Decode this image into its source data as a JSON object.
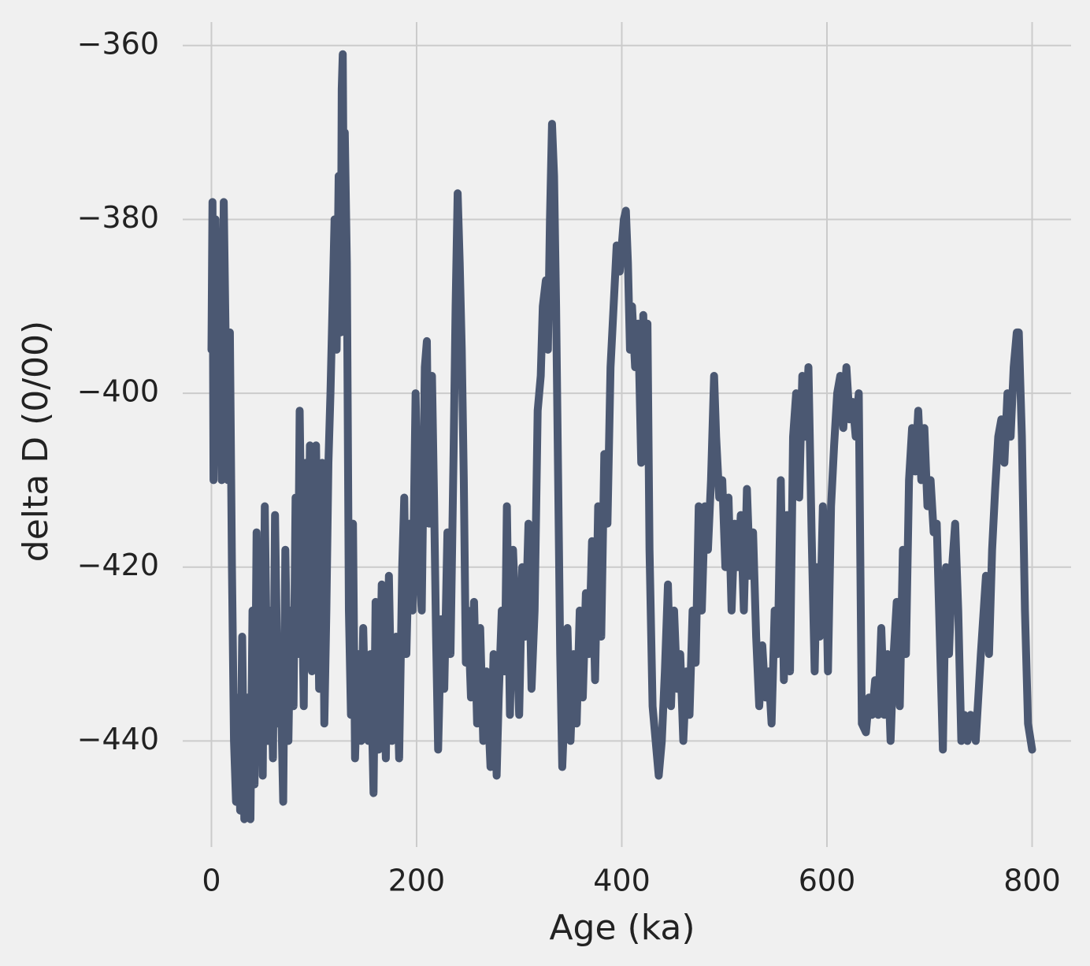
{
  "chart_data": {
    "type": "line",
    "x_label": "Age (ka)",
    "y_label": "delta D (0/00)",
    "xlim": [
      -28,
      838
    ],
    "ylim": [
      -452.2,
      -357.3
    ],
    "xticks": [
      0,
      200,
      400,
      600,
      800
    ],
    "yticks": [
      {
        "value": -360,
        "label": "−360"
      },
      {
        "value": -380,
        "label": "−380"
      },
      {
        "value": -400,
        "label": "−400"
      },
      {
        "value": -420,
        "label": "−420"
      },
      {
        "value": -440,
        "label": "−440"
      }
    ],
    "grid": true,
    "x": [
      0,
      1,
      2,
      4,
      6,
      8,
      10,
      12,
      14,
      16,
      18,
      20,
      22,
      24,
      26,
      28,
      30,
      32,
      35,
      38,
      40,
      42,
      44,
      46,
      48,
      50,
      52,
      55,
      57,
      60,
      62,
      65,
      67,
      70,
      72,
      75,
      77,
      80,
      82,
      84,
      86,
      88,
      90,
      92,
      94,
      96,
      98,
      100,
      102,
      105,
      108,
      110,
      112,
      114,
      116,
      118,
      120,
      122,
      124,
      126,
      127,
      128,
      129,
      130,
      132,
      134,
      136,
      138,
      140,
      143,
      146,
      148,
      150,
      153,
      155,
      158,
      160,
      163,
      166,
      170,
      173,
      176,
      180,
      183,
      186,
      188,
      190,
      193,
      196,
      199,
      202,
      205,
      208,
      210,
      212,
      215,
      217,
      219,
      221,
      224,
      227,
      230,
      233,
      236,
      238,
      240,
      242,
      244,
      246,
      248,
      250,
      253,
      256,
      259,
      262,
      265,
      268,
      272,
      275,
      278,
      280,
      283,
      286,
      288,
      291,
      294,
      297,
      300,
      303,
      306,
      309,
      312,
      315,
      318,
      321,
      323,
      326,
      328,
      330,
      332,
      334,
      336,
      338,
      340,
      342,
      344,
      347,
      350,
      353,
      356,
      359,
      362,
      365,
      368,
      371,
      374,
      377,
      380,
      383,
      386,
      389,
      392,
      395,
      398,
      402,
      404,
      406,
      408,
      410,
      413,
      416,
      419,
      421,
      423,
      425,
      427,
      430,
      433,
      436,
      439,
      442,
      445,
      448,
      451,
      454,
      457,
      460,
      463,
      466,
      469,
      472,
      475,
      478,
      481,
      484,
      487,
      490,
      492,
      495,
      498,
      501,
      504,
      507,
      510,
      513,
      516,
      519,
      522,
      525,
      528,
      531,
      534,
      537,
      540,
      543,
      546,
      549,
      552,
      555,
      558,
      561,
      564,
      567,
      570,
      573,
      576,
      579,
      582,
      585,
      588,
      590,
      593,
      596,
      599,
      601,
      604,
      607,
      610,
      613,
      616,
      619,
      622,
      625,
      628,
      631,
      634,
      638,
      641,
      644,
      647,
      650,
      653,
      656,
      659,
      662,
      665,
      668,
      671,
      674,
      677,
      680,
      683,
      686,
      689,
      692,
      695,
      698,
      701,
      704,
      707,
      710,
      713,
      716,
      719,
      722,
      725,
      728,
      731,
      734,
      737,
      740,
      745,
      750,
      755,
      758,
      761,
      764,
      767,
      770,
      773,
      776,
      779,
      782,
      785,
      787,
      790,
      793,
      796,
      800
    ],
    "series": [
      {
        "color": "#4b5872",
        "values": [
          -395,
          -378,
          -410,
          -380,
          -400,
          -392,
          -410,
          -378,
          -395,
          -410,
          -393,
          -420,
          -440,
          -447,
          -435,
          -448,
          -428,
          -449,
          -435,
          -449,
          -425,
          -445,
          -416,
          -440,
          -428,
          -444,
          -413,
          -440,
          -425,
          -442,
          -414,
          -438,
          -430,
          -447,
          -418,
          -440,
          -425,
          -436,
          -412,
          -430,
          -402,
          -420,
          -436,
          -408,
          -428,
          -406,
          -432,
          -416,
          -406,
          -434,
          -408,
          -438,
          -425,
          -408,
          -400,
          -390,
          -380,
          -395,
          -375,
          -393,
          -365,
          -361,
          -380,
          -370,
          -385,
          -425,
          -437,
          -415,
          -442,
          -430,
          -440,
          -427,
          -437,
          -440,
          -430,
          -446,
          -424,
          -441,
          -422,
          -442,
          -421,
          -440,
          -428,
          -442,
          -420,
          -412,
          -430,
          -415,
          -425,
          -400,
          -420,
          -425,
          -397,
          -394,
          -415,
          -398,
          -412,
          -428,
          -441,
          -426,
          -434,
          -416,
          -430,
          -407,
          -390,
          -377,
          -385,
          -395,
          -410,
          -431,
          -425,
          -435,
          -424,
          -438,
          -427,
          -440,
          -432,
          -443,
          -430,
          -444,
          -435,
          -425,
          -432,
          -413,
          -437,
          -418,
          -427,
          -437,
          -420,
          -428,
          -415,
          -434,
          -425,
          -402,
          -398,
          -390,
          -387,
          -395,
          -380,
          -369,
          -375,
          -390,
          -410,
          -430,
          -443,
          -437,
          -427,
          -440,
          -430,
          -438,
          -425,
          -435,
          -423,
          -430,
          -417,
          -433,
          -413,
          -428,
          -407,
          -415,
          -397,
          -390,
          -383,
          -386,
          -380,
          -379,
          -385,
          -395,
          -390,
          -397,
          -392,
          -408,
          -391,
          -405,
          -392,
          -418,
          -436,
          -440,
          -444,
          -440,
          -432,
          -422,
          -436,
          -425,
          -434,
          -430,
          -440,
          -432,
          -437,
          -425,
          -431,
          -413,
          -425,
          -413,
          -418,
          -410,
          -398,
          -405,
          -412,
          -410,
          -420,
          -412,
          -425,
          -415,
          -420,
          -414,
          -425,
          -411,
          -421,
          -416,
          -428,
          -436,
          -429,
          -435,
          -432,
          -438,
          -425,
          -430,
          -410,
          -433,
          -414,
          -432,
          -405,
          -400,
          -412,
          -398,
          -405,
          -397,
          -416,
          -432,
          -420,
          -428,
          -413,
          -420,
          -432,
          -413,
          -406,
          -400,
          -398,
          -404,
          -397,
          -403,
          -401,
          -405,
          -400,
          -438,
          -439,
          -435,
          -437,
          -433,
          -437,
          -427,
          -437,
          -430,
          -440,
          -430,
          -424,
          -436,
          -418,
          -430,
          -410,
          -404,
          -409,
          -402,
          -410,
          -404,
          -413,
          -410,
          -416,
          -415,
          -428,
          -441,
          -420,
          -430,
          -420,
          -415,
          -425,
          -440,
          -437,
          -440,
          -437,
          -440,
          -430,
          -421,
          -430,
          -418,
          -411,
          -405,
          -403,
          -408,
          -400,
          -405,
          -397,
          -393,
          -393,
          -405,
          -425,
          -438,
          -441
        ]
      }
    ]
  }
}
